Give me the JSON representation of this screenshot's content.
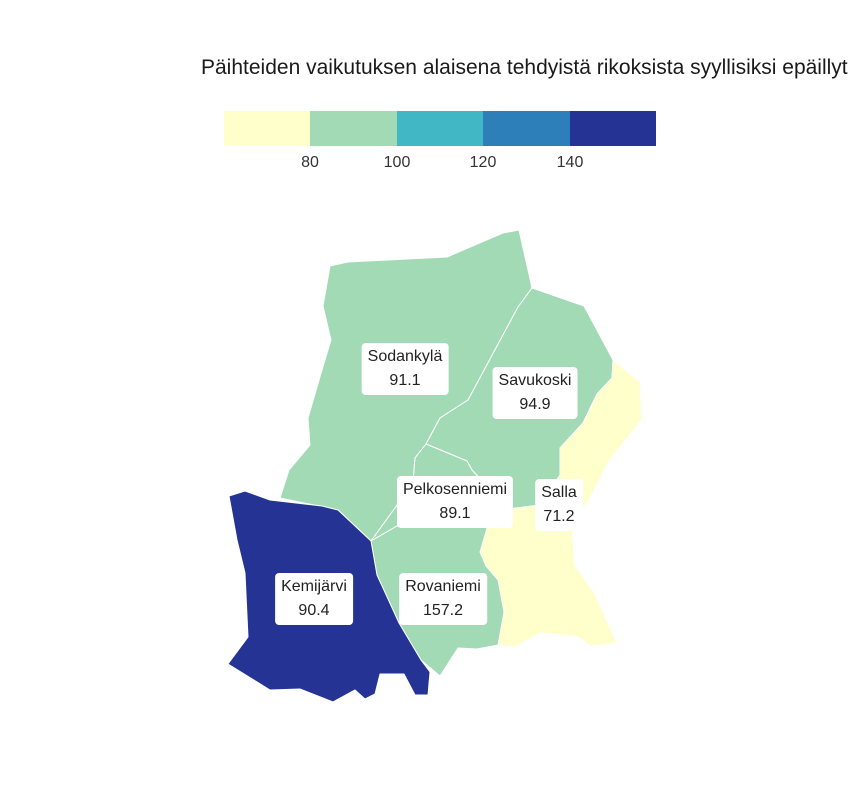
{
  "title": "Päihteiden vaikutuksen alaisena tehdyistä rikoksista syyllisiksi epäillyt",
  "legend": {
    "colors": [
      "#ffffcc",
      "#a1dab4",
      "#41b6c4",
      "#2c7fb8",
      "#253494"
    ],
    "ticks": [
      "80",
      "100",
      "120",
      "140"
    ]
  },
  "regions": [
    {
      "name": "Sodankylä",
      "value": "91.1",
      "color": "#a1dab4"
    },
    {
      "name": "Savukoski",
      "value": "94.9",
      "color": "#a1dab4"
    },
    {
      "name": "Pelkosenniemi",
      "value": "89.1",
      "color": "#a1dab4"
    },
    {
      "name": "Salla",
      "value": "71.2",
      "color": "#ffffcc"
    },
    {
      "name": "Rovaniemi",
      "value": "157.2",
      "color": "#253494"
    },
    {
      "name": "Kemijärvi",
      "value": "90.4",
      "color": "#a1dab4"
    }
  ]
}
